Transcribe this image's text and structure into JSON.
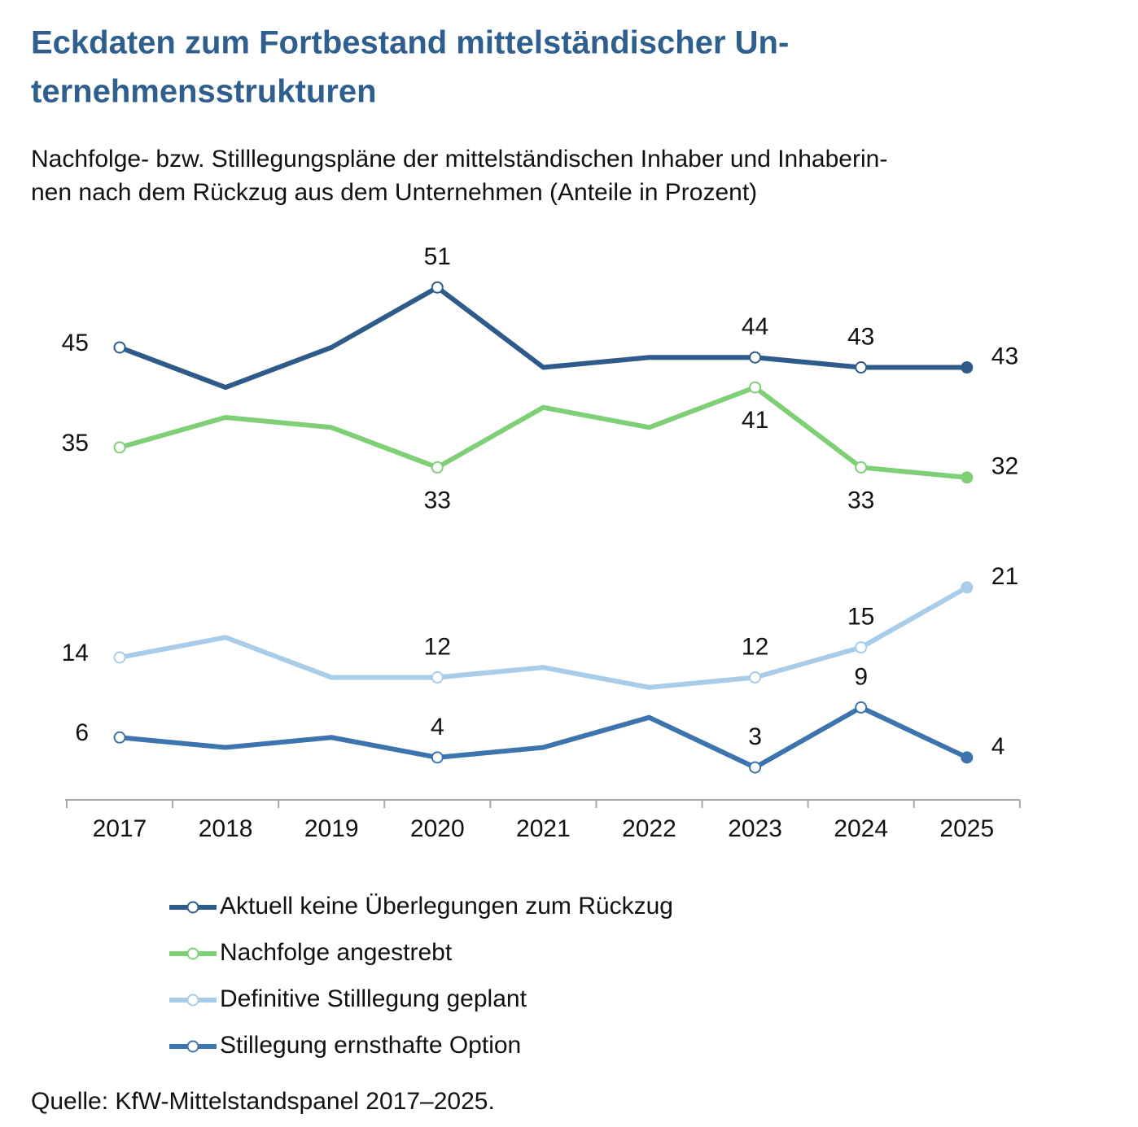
{
  "chart_data": {
    "type": "line",
    "title": [
      "Eckdaten zum Fortbestand mittelständischer Un-",
      "ternehmensstrukturen"
    ],
    "subtitle": [
      "Nachfolge- bzw. Stilllegungspläne der mittelständischen Inhaber und Inhaberin-",
      "nen nach dem Rückzug aus dem Unternehmen (Anteile in Prozent)"
    ],
    "categories": [
      "2017",
      "2018",
      "2019",
      "2020",
      "2021",
      "2022",
      "2023",
      "2024",
      "2025"
    ],
    "series": [
      {
        "name": "Aktuell keine Überlegungen zum Rückzug",
        "color": "#2e5b8a",
        "values": [
          45,
          41,
          45,
          51,
          43,
          44,
          44,
          43,
          43
        ],
        "value_labels": [
          45,
          null,
          null,
          51,
          null,
          null,
          44,
          43,
          43
        ]
      },
      {
        "name": "Nachfolge angestrebt",
        "color": "#7fcf77",
        "values": [
          35,
          38,
          37,
          33,
          39,
          37,
          41,
          33,
          32
        ],
        "value_labels": [
          35,
          null,
          null,
          33,
          null,
          null,
          41,
          33,
          32
        ]
      },
      {
        "name": "Definitive Stilllegung geplant",
        "color": "#a9cce8",
        "values": [
          14,
          16,
          12,
          12,
          13,
          11,
          12,
          15,
          21
        ],
        "value_labels": [
          14,
          null,
          null,
          12,
          null,
          null,
          12,
          15,
          21
        ]
      },
      {
        "name": "Stillegung ernsthafte Option",
        "color": "#3d74ad",
        "values": [
          6,
          5,
          6,
          4,
          5,
          8,
          3,
          9,
          4
        ],
        "value_labels": [
          6,
          null,
          null,
          4,
          null,
          null,
          3,
          9,
          4
        ]
      }
    ],
    "source": "Quelle: KfW-Mittelstandspanel 2017–2025."
  }
}
